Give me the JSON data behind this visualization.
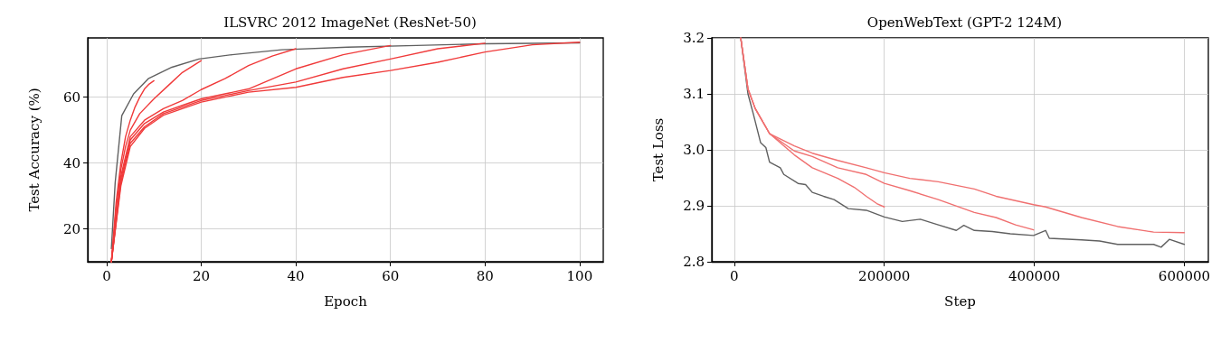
{
  "chart_data": [
    {
      "type": "line",
      "title": "ILSVRC 2012 ImageNet (ResNet-50)",
      "xlabel": "Epoch",
      "ylabel": "Test Accuracy (%)",
      "xlim": [
        -4,
        105
      ],
      "ylim": [
        10,
        78
      ],
      "xticks": [
        0,
        20,
        40,
        60,
        80,
        100
      ],
      "yticks": [
        20,
        40,
        60
      ],
      "grid": true,
      "marker": "none",
      "line_style": "solid",
      "series": [
        {
          "color": "#606060",
          "x": [
            1,
            1.8,
            3.2,
            5.7,
            8.8,
            13.8,
            19.5,
            26.5,
            37,
            51,
            65.5,
            79.7,
            100
          ],
          "values": [
            14,
            34,
            54.4,
            61,
            65.6,
            69.1,
            71.6,
            72.9,
            74.4,
            75.2,
            75.7,
            76.2,
            76.5
          ]
        },
        {
          "color": "#f03a3a",
          "x": [
            1,
            2,
            3,
            4,
            5,
            6,
            7,
            8,
            9,
            10
          ],
          "values": [
            10,
            28,
            40,
            48,
            53,
            57,
            60,
            62.5,
            64,
            65
          ]
        },
        {
          "color": "#f03a3a",
          "x": [
            1,
            2,
            3,
            4,
            5,
            7,
            10,
            13,
            16,
            20
          ],
          "values": [
            10,
            26,
            38,
            45,
            50,
            55,
            59.5,
            63.5,
            67.5,
            71.1
          ]
        },
        {
          "color": "#f03a3a",
          "x": [
            1,
            3,
            5,
            8,
            12,
            16,
            20,
            25,
            30,
            35,
            40
          ],
          "values": [
            10,
            36,
            48,
            53,
            56.5,
            59,
            62.3,
            65.6,
            69.6,
            72.5,
            74.7
          ]
        },
        {
          "color": "#f03a3a",
          "x": [
            1,
            3,
            5,
            8,
            12,
            16,
            20,
            25,
            30,
            40,
            50,
            60
          ],
          "values": [
            10,
            35,
            47,
            52,
            55.5,
            57.5,
            59.5,
            61,
            62.5,
            68.6,
            72.9,
            75.7
          ]
        },
        {
          "color": "#f03a3a",
          "x": [
            1,
            3,
            5,
            8,
            12,
            16,
            20,
            25,
            30,
            40,
            50,
            60,
            70,
            80
          ],
          "values": [
            10,
            34,
            46,
            51,
            55,
            57,
            59,
            60.5,
            62,
            64.6,
            68.6,
            71.6,
            74.7,
            76.4
          ]
        },
        {
          "color": "#f03a3a",
          "x": [
            1,
            3,
            5,
            8,
            12,
            16,
            20,
            25,
            30,
            40,
            50,
            60,
            70,
            80,
            90,
            100
          ],
          "values": [
            10,
            33,
            45,
            50.5,
            54.5,
            56.5,
            58.5,
            60,
            61.5,
            63,
            66,
            68.1,
            70.6,
            73.7,
            75.9,
            76.7
          ]
        }
      ]
    },
    {
      "type": "line",
      "title": "OpenWebText (GPT-2 124M)",
      "xlabel": "Step",
      "ylabel": "Test Loss",
      "xlim": [
        -30000,
        632000
      ],
      "ylim": [
        2.8,
        3.2
      ],
      "xticks": [
        0,
        200000,
        400000,
        600000
      ],
      "yticks": [
        2.8,
        2.9,
        {
          "value": 3,
          "label": "3.0"
        },
        3.1,
        3.2
      ],
      "grid": true,
      "marker": "none",
      "line_style": "solid",
      "series": [
        {
          "color": "#606060",
          "x": [
            8600,
            18200,
            25400,
            35000,
            42100,
            47000,
            61300,
            66000,
            85000,
            95000,
            104000,
            119000,
            133000,
            152000,
            176000,
            200000,
            224000,
            248000,
            272000,
            296000,
            306000,
            320000,
            344000,
            368000,
            399000,
            415000,
            420000,
            463000,
            487000,
            511000,
            559000,
            569000,
            580000,
            600000
          ],
          "values": [
            3.2,
            3.1,
            3.064,
            3.013,
            3.004,
            2.978,
            2.968,
            2.956,
            2.94,
            2.938,
            2.924,
            2.917,
            2.911,
            2.895,
            2.892,
            2.88,
            2.872,
            2.876,
            2.866,
            2.856,
            2.865,
            2.856,
            2.854,
            2.85,
            2.847,
            2.856,
            2.842,
            2.839,
            2.837,
            2.831,
            2.831,
            2.826,
            2.84,
            2.831
          ]
        },
        {
          "color": "#f07070",
          "x": [
            8600,
            18200,
            27800,
            47000,
            80000,
            104000,
            138000,
            176000,
            200000,
            234000,
            272000,
            320000,
            349000,
            399000,
            415000,
            463000,
            511000,
            559000,
            600000
          ],
          "values": [
            3.2,
            3.109,
            3.074,
            3.029,
            3.007,
            2.994,
            2.981,
            2.968,
            2.959,
            2.949,
            2.943,
            2.93,
            2.917,
            2.902,
            2.898,
            2.879,
            2.863,
            2.853,
            2.852
          ]
        },
        {
          "color": "#f07070",
          "x": [
            8600,
            18200,
            27800,
            47000,
            80000,
            104000,
            138000,
            176000,
            200000,
            234000,
            272000,
            320000,
            349000,
            375000,
            399000
          ],
          "values": [
            3.2,
            3.109,
            3.074,
            3.029,
            2.998,
            2.988,
            2.968,
            2.956,
            2.94,
            2.927,
            2.911,
            2.888,
            2.879,
            2.866,
            2.857
          ]
        },
        {
          "color": "#f07070",
          "x": [
            8600,
            18200,
            27800,
            47000,
            80000,
            104000,
            138000,
            160000,
            176000,
            190000,
            200000
          ],
          "values": [
            3.2,
            3.109,
            3.074,
            3.029,
            2.991,
            2.968,
            2.949,
            2.933,
            2.917,
            2.904,
            2.898
          ]
        }
      ]
    }
  ]
}
